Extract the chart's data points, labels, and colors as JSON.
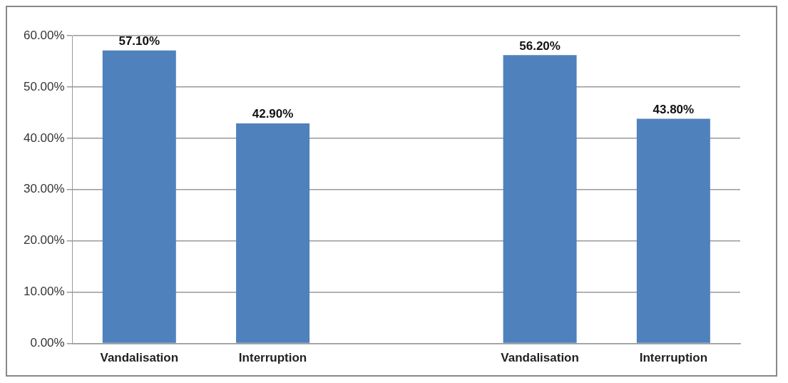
{
  "chart_data": {
    "type": "bar",
    "categories": [
      "Vandalisation",
      "Interruption",
      null,
      "Vandalisation",
      "Interruption"
    ],
    "values": [
      57.1,
      42.9,
      null,
      56.2,
      43.8
    ],
    "value_labels": [
      "57.10%",
      "42.90%",
      null,
      "56.20%",
      "43.80%"
    ],
    "color": "#4f81bd",
    "ylim": [
      0,
      60
    ],
    "yticks": [
      {
        "value": 0,
        "label": "0.00%"
      },
      {
        "value": 10,
        "label": "10.00%"
      },
      {
        "value": 20,
        "label": "20.00%"
      },
      {
        "value": 30,
        "label": "30.00%"
      },
      {
        "value": 40,
        "label": "40.00%"
      },
      {
        "value": 50,
        "label": "50.00%"
      },
      {
        "value": 60,
        "label": "60.00%"
      }
    ],
    "grid": "y"
  }
}
